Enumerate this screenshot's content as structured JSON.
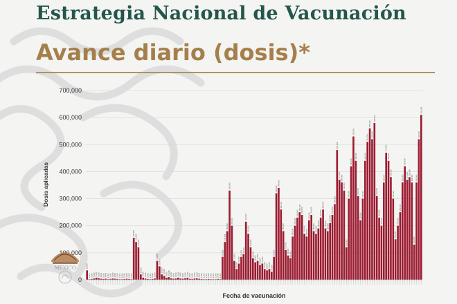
{
  "header": {
    "title": "Estrategia Nacional de Vacunación",
    "subtitle": "Avance diario (dosis)*"
  },
  "colors": {
    "title": "#24564a",
    "subtitle": "#a57f4b",
    "bar": "#9b1c31",
    "rule": "#b59062",
    "gridline": "#dcdcdc"
  },
  "emblem": {
    "icon": "mexico-coat-of-arms-icon",
    "label": "MÉXICO"
  },
  "chart_data": {
    "type": "bar",
    "title": "",
    "xlabel": "Fecha de vacunación",
    "ylabel": "Dosis aplicadas",
    "ylim": [
      0,
      700000
    ],
    "yticks": [
      "0",
      "100,000",
      "200,000",
      "300,000",
      "400,000",
      "500,000",
      "600,000",
      "700,000"
    ],
    "grid": true,
    "values": [
      35000,
      2000,
      3000,
      5000,
      8000,
      6000,
      4000,
      3000,
      4000,
      2000,
      3000,
      5000,
      4000,
      3000,
      2000,
      2000,
      3000,
      4000,
      3000,
      2000,
      155000,
      140000,
      120000,
      20000,
      8000,
      5000,
      3000,
      2000,
      3000,
      5000,
      70000,
      50000,
      20000,
      15000,
      8000,
      10000,
      6000,
      4000,
      5000,
      8000,
      5000,
      4000,
      6000,
      8000,
      4000,
      3000,
      5000,
      6000,
      4000,
      3000,
      2000,
      2000,
      3000,
      2000,
      2000,
      2000,
      3000,
      2000,
      85000,
      140000,
      180000,
      330000,
      200000,
      70000,
      40000,
      60000,
      85000,
      95000,
      215000,
      170000,
      120000,
      80000,
      65000,
      70000,
      55000,
      60000,
      40000,
      35000,
      40000,
      30000,
      85000,
      320000,
      340000,
      260000,
      180000,
      110000,
      90000,
      80000,
      160000,
      200000,
      230000,
      250000,
      240000,
      170000,
      160000,
      220000,
      240000,
      180000,
      170000,
      190000,
      230000,
      260000,
      190000,
      180000,
      210000,
      240000,
      280000,
      480000,
      370000,
      360000,
      330000,
      120000,
      300000,
      420000,
      530000,
      440000,
      310000,
      220000,
      300000,
      440000,
      510000,
      560000,
      520000,
      580000,
      310000,
      230000,
      200000,
      360000,
      470000,
      440000,
      380000,
      300000,
      150000,
      200000,
      250000,
      360000,
      420000,
      370000,
      380000,
      360000,
      130000,
      360000,
      520000,
      610000
    ]
  }
}
